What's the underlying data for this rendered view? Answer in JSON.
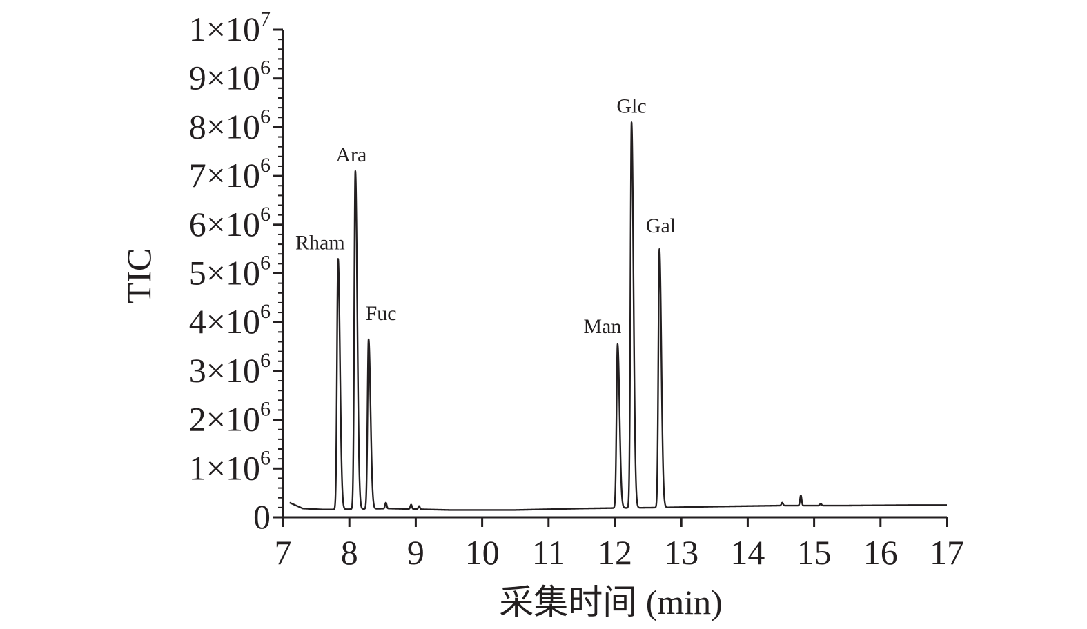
{
  "chart_data": {
    "type": "line",
    "title": "",
    "xlabel": "采集时间 (min)",
    "ylabel": "TIC",
    "xlim": [
      7,
      17
    ],
    "ylim": [
      0,
      10000000
    ],
    "grid": false,
    "x_ticks": [
      "7",
      "8",
      "9",
      "10",
      "11",
      "12",
      "13",
      "14",
      "15",
      "16",
      "17"
    ],
    "y_ticks": [
      {
        "mant": "0",
        "exp": ""
      },
      {
        "mant": "1×10",
        "exp": "6"
      },
      {
        "mant": "2×10",
        "exp": "6"
      },
      {
        "mant": "3×10",
        "exp": "6"
      },
      {
        "mant": "4×10",
        "exp": "6"
      },
      {
        "mant": "5×10",
        "exp": "6"
      },
      {
        "mant": "6×10",
        "exp": "6"
      },
      {
        "mant": "7×10",
        "exp": "6"
      },
      {
        "mant": "8×10",
        "exp": "6"
      },
      {
        "mant": "9×10",
        "exp": "6"
      },
      {
        "mant": "1×10",
        "exp": "7"
      }
    ],
    "baseline": [
      [
        7.1,
        300000
      ],
      [
        7.3,
        180000
      ],
      [
        7.6,
        160000
      ],
      [
        7.75,
        160000
      ],
      [
        8.6,
        180000
      ],
      [
        9.5,
        150000
      ],
      [
        10.5,
        150000
      ],
      [
        11.5,
        180000
      ],
      [
        12.0,
        190000
      ],
      [
        12.7,
        200000
      ],
      [
        13.5,
        220000
      ],
      [
        14.5,
        240000
      ],
      [
        15.5,
        240000
      ],
      [
        16.5,
        250000
      ],
      [
        17.0,
        250000
      ]
    ],
    "peaks": [
      {
        "name": "Rham",
        "x": 7.83,
        "y": 5300000
      },
      {
        "name": "Ara",
        "x": 8.09,
        "y": 7100000
      },
      {
        "name": "Fuc",
        "x": 8.29,
        "y": 3650000
      },
      {
        "name": "Man",
        "x": 12.04,
        "y": 3550000
      },
      {
        "name": "Glc",
        "x": 12.25,
        "y": 8100000
      },
      {
        "name": "Gal",
        "x": 12.67,
        "y": 5500000
      }
    ],
    "minor_peaks": [
      {
        "x": 8.55,
        "y": 300000
      },
      {
        "x": 8.93,
        "y": 260000
      },
      {
        "x": 9.05,
        "y": 230000
      },
      {
        "x": 14.52,
        "y": 300000
      },
      {
        "x": 14.8,
        "y": 450000
      },
      {
        "x": 15.1,
        "y": 280000
      }
    ]
  }
}
